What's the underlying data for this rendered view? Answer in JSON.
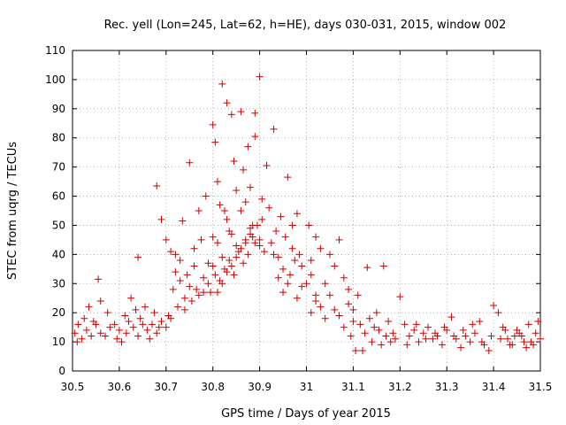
{
  "chart_data": {
    "type": "scatter",
    "title": "Rec. yell (Lon=245, Lat=62, h=HE), days 030-031, 2015, window 002",
    "xlabel": "GPS time / Days of year 2015",
    "ylabel": "STEC from uqrg / TECUs",
    "xlim": [
      30.5,
      31.5
    ],
    "ylim": [
      0,
      110
    ],
    "xticks": [
      "30.5",
      "30.6",
      "30.7",
      "30.8",
      "30.9",
      "31",
      "31.1",
      "31.2",
      "31.3",
      "31.4",
      "31.5"
    ],
    "yticks": [
      "0",
      "10",
      "20",
      "30",
      "40",
      "50",
      "60",
      "70",
      "80",
      "90",
      "100",
      "110"
    ],
    "grid": true,
    "marker": "plus",
    "color": "#cc0000",
    "series": [
      {
        "points": [
          [
            30.505,
            13
          ],
          [
            30.512,
            16
          ],
          [
            30.52,
            11
          ],
          [
            30.53,
            14
          ],
          [
            30.54,
            12
          ],
          [
            30.55,
            16
          ],
          [
            30.56,
            13
          ],
          [
            30.57,
            12
          ],
          [
            30.58,
            15
          ],
          [
            30.595,
            11
          ],
          [
            30.51,
            10
          ],
          [
            30.525,
            18
          ],
          [
            30.535,
            22
          ],
          [
            30.545,
            17
          ],
          [
            30.555,
            31.5
          ],
          [
            30.56,
            24
          ],
          [
            30.575,
            20
          ],
          [
            30.59,
            16
          ],
          [
            30.6,
            14
          ],
          [
            30.605,
            10
          ],
          [
            30.612,
            19
          ],
          [
            30.62,
            17
          ],
          [
            30.625,
            25
          ],
          [
            30.63,
            15
          ],
          [
            30.64,
            12
          ],
          [
            30.645,
            18
          ],
          [
            30.65,
            16
          ],
          [
            30.66,
            14
          ],
          [
            30.67,
            16
          ],
          [
            30.68,
            13
          ],
          [
            30.615,
            13
          ],
          [
            30.635,
            21
          ],
          [
            30.655,
            22
          ],
          [
            30.665,
            11
          ],
          [
            30.675,
            20
          ],
          [
            30.685,
            15
          ],
          [
            30.69,
            17
          ],
          [
            30.7,
            15
          ],
          [
            30.705,
            19
          ],
          [
            30.71,
            18
          ],
          [
            30.64,
            39
          ],
          [
            30.68,
            63.5
          ],
          [
            30.69,
            52
          ],
          [
            30.7,
            45
          ],
          [
            30.71,
            41
          ],
          [
            30.715,
            28
          ],
          [
            30.72,
            34
          ],
          [
            30.725,
            22
          ],
          [
            30.73,
            38
          ],
          [
            30.74,
            25
          ],
          [
            30.735,
            51.5
          ],
          [
            30.745,
            33
          ],
          [
            30.75,
            71.5
          ],
          [
            30.755,
            24
          ],
          [
            30.76,
            36
          ],
          [
            30.765,
            28
          ],
          [
            30.77,
            26
          ],
          [
            30.775,
            45
          ],
          [
            30.78,
            27
          ],
          [
            30.785,
            60
          ],
          [
            30.72,
            40
          ],
          [
            30.73,
            31
          ],
          [
            30.74,
            21
          ],
          [
            30.75,
            29
          ],
          [
            30.76,
            42
          ],
          [
            30.77,
            55
          ],
          [
            30.78,
            32
          ],
          [
            30.79,
            37
          ],
          [
            30.8,
            46
          ],
          [
            30.805,
            78.5
          ],
          [
            30.8,
            84.5
          ],
          [
            30.81,
            65
          ],
          [
            30.815,
            57
          ],
          [
            30.82,
            98.5
          ],
          [
            30.825,
            55
          ],
          [
            30.83,
            92
          ],
          [
            30.835,
            48
          ],
          [
            30.84,
            88
          ],
          [
            30.845,
            72
          ],
          [
            30.85,
            62
          ],
          [
            30.86,
            89
          ],
          [
            30.865,
            69
          ],
          [
            30.87,
            58
          ],
          [
            30.875,
            77
          ],
          [
            30.88,
            63
          ],
          [
            30.885,
            50
          ],
          [
            30.89,
            80.5
          ],
          [
            30.89,
            88.5
          ],
          [
            30.9,
            101
          ],
          [
            30.905,
            59
          ],
          [
            30.79,
            30
          ],
          [
            30.8,
            36
          ],
          [
            30.81,
            44
          ],
          [
            30.82,
            39
          ],
          [
            30.83,
            52
          ],
          [
            30.84,
            47
          ],
          [
            30.85,
            43
          ],
          [
            30.86,
            55
          ],
          [
            30.87,
            45
          ],
          [
            30.88,
            49
          ],
          [
            30.795,
            27
          ],
          [
            30.805,
            33
          ],
          [
            30.815,
            31
          ],
          [
            30.825,
            35
          ],
          [
            30.835,
            38
          ],
          [
            30.845,
            33
          ],
          [
            30.855,
            41
          ],
          [
            30.865,
            37
          ],
          [
            30.875,
            40
          ],
          [
            30.885,
            46
          ],
          [
            30.81,
            27
          ],
          [
            30.82,
            30
          ],
          [
            30.83,
            34
          ],
          [
            30.84,
            36
          ],
          [
            30.85,
            39
          ],
          [
            30.86,
            42
          ],
          [
            30.87,
            44
          ],
          [
            30.88,
            47
          ],
          [
            30.89,
            44
          ],
          [
            30.9,
            43
          ],
          [
            30.895,
            50
          ],
          [
            30.9,
            45
          ],
          [
            30.905,
            52
          ],
          [
            30.91,
            41
          ],
          [
            30.915,
            70.5
          ],
          [
            30.92,
            56
          ],
          [
            30.925,
            44
          ],
          [
            30.93,
            83
          ],
          [
            30.935,
            48
          ],
          [
            30.94,
            39
          ],
          [
            30.945,
            53
          ],
          [
            30.95,
            35
          ],
          [
            30.955,
            46
          ],
          [
            30.96,
            66.5
          ],
          [
            30.965,
            33
          ],
          [
            30.97,
            50
          ],
          [
            30.975,
            38
          ],
          [
            30.98,
            54
          ],
          [
            30.985,
            40
          ],
          [
            30.99,
            36
          ],
          [
            30.93,
            40
          ],
          [
            30.94,
            32
          ],
          [
            30.95,
            27
          ],
          [
            30.96,
            30
          ],
          [
            30.97,
            42
          ],
          [
            30.98,
            25
          ],
          [
            30.99,
            29
          ],
          [
            31.0,
            30
          ],
          [
            31.01,
            33
          ],
          [
            31.02,
            26
          ],
          [
            31.005,
            50
          ],
          [
            31.01,
            38
          ],
          [
            31.02,
            46
          ],
          [
            31.03,
            42
          ],
          [
            31.04,
            30
          ],
          [
            31.05,
            40
          ],
          [
            31.06,
            36
          ],
          [
            31.07,
            45
          ],
          [
            31.08,
            32
          ],
          [
            31.09,
            28
          ],
          [
            31.01,
            20
          ],
          [
            31.02,
            24
          ],
          [
            31.03,
            22
          ],
          [
            31.04,
            18
          ],
          [
            31.05,
            26
          ],
          [
            31.06,
            21
          ],
          [
            31.07,
            19
          ],
          [
            31.08,
            15
          ],
          [
            31.09,
            23
          ],
          [
            31.1,
            17
          ],
          [
            31.095,
            12
          ],
          [
            31.1,
            21
          ],
          [
            31.105,
            7
          ],
          [
            31.11,
            26
          ],
          [
            31.115,
            16
          ],
          [
            31.12,
            7
          ],
          [
            31.125,
            13
          ],
          [
            31.13,
            35.5
          ],
          [
            31.135,
            18
          ],
          [
            31.14,
            10
          ],
          [
            31.145,
            15
          ],
          [
            31.15,
            20
          ],
          [
            31.155,
            14
          ],
          [
            31.16,
            9
          ],
          [
            31.165,
            36
          ],
          [
            31.17,
            12
          ],
          [
            31.175,
            17
          ],
          [
            31.18,
            10
          ],
          [
            31.185,
            13
          ],
          [
            31.19,
            11
          ],
          [
            31.2,
            25.5
          ],
          [
            31.21,
            16
          ],
          [
            31.22,
            12
          ],
          [
            31.23,
            14
          ],
          [
            31.24,
            10
          ],
          [
            31.25,
            13
          ],
          [
            31.26,
            15
          ],
          [
            31.27,
            11
          ],
          [
            31.28,
            12
          ],
          [
            31.29,
            9
          ],
          [
            31.3,
            14
          ],
          [
            31.31,
            18.5
          ],
          [
            31.32,
            11
          ],
          [
            31.33,
            8
          ],
          [
            31.34,
            12
          ],
          [
            31.35,
            10
          ],
          [
            31.36,
            13
          ],
          [
            31.37,
            17
          ],
          [
            31.38,
            9
          ],
          [
            31.39,
            7
          ],
          [
            31.4,
            22.5
          ],
          [
            31.41,
            20
          ],
          [
            31.42,
            15
          ],
          [
            31.43,
            11
          ],
          [
            31.44,
            9
          ],
          [
            31.45,
            14
          ],
          [
            31.46,
            12
          ],
          [
            31.47,
            8
          ],
          [
            31.48,
            10
          ],
          [
            31.49,
            13
          ],
          [
            31.495,
            17
          ],
          [
            31.5,
            11
          ],
          [
            31.485,
            9
          ],
          [
            31.475,
            16
          ],
          [
            31.465,
            10
          ],
          [
            31.455,
            13
          ],
          [
            31.445,
            12
          ],
          [
            31.435,
            9
          ],
          [
            31.425,
            14
          ],
          [
            31.415,
            11
          ],
          [
            31.215,
            9
          ],
          [
            31.235,
            16
          ],
          [
            31.255,
            11
          ],
          [
            31.275,
            13
          ],
          [
            31.295,
            15
          ],
          [
            31.315,
            12
          ],
          [
            31.335,
            14
          ],
          [
            31.355,
            16
          ],
          [
            31.375,
            10
          ],
          [
            31.395,
            12
          ]
        ]
      }
    ]
  }
}
